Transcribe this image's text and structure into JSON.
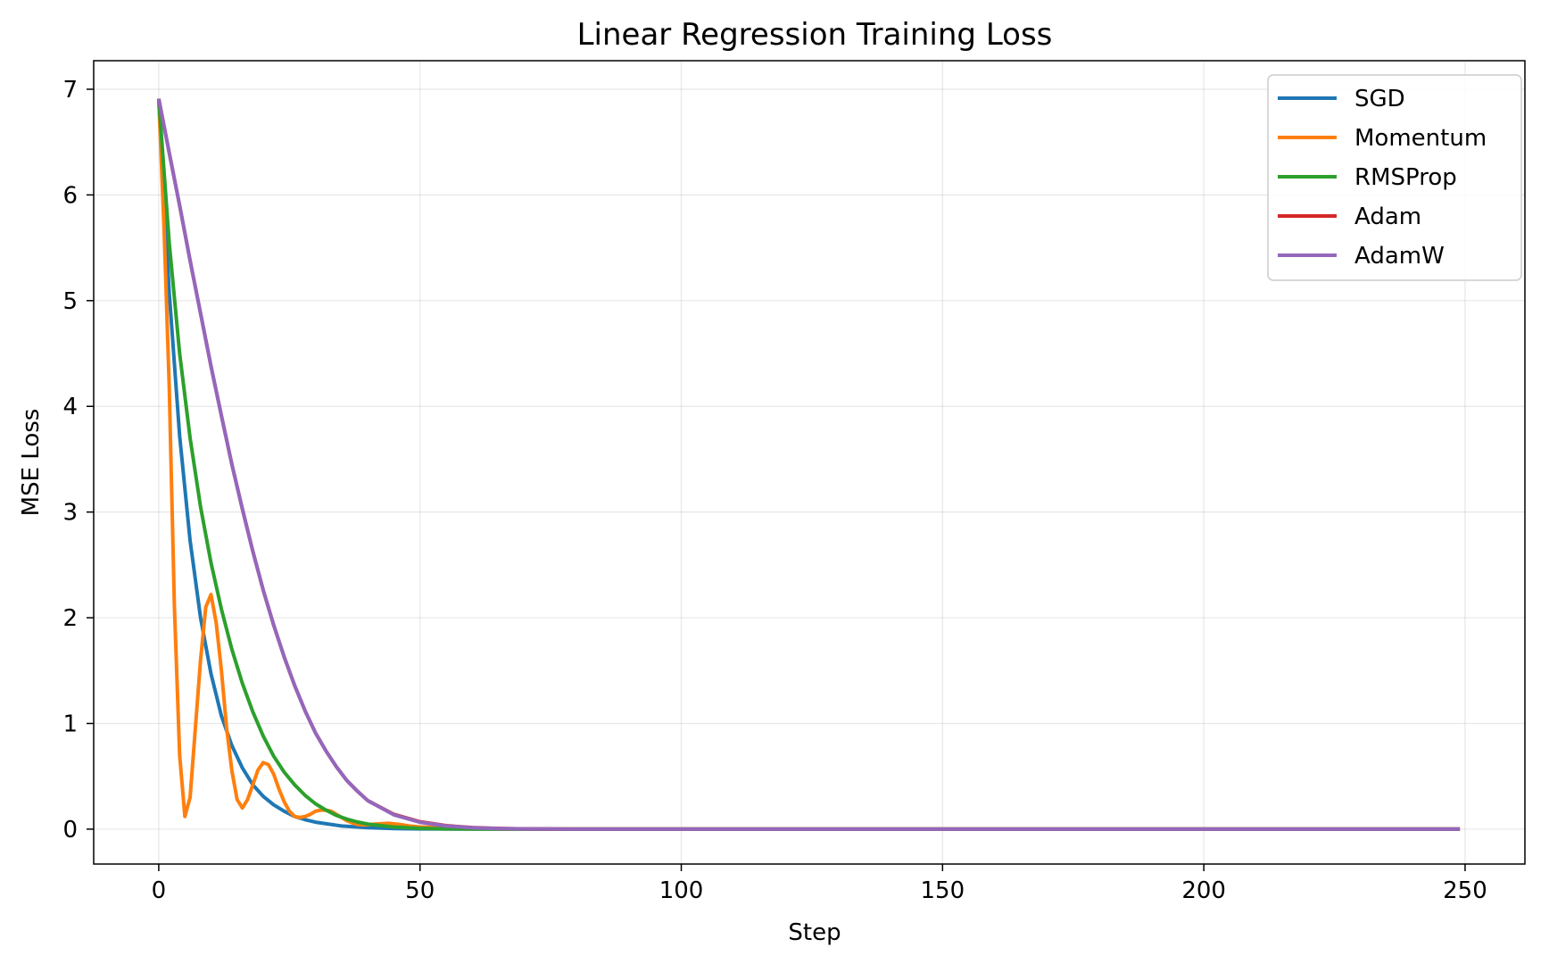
{
  "chart_data": {
    "type": "line",
    "title": "Linear Regression Training Loss",
    "xlabel": "Step",
    "ylabel": "MSE Loss",
    "xlim": [
      -12.45,
      261.45
    ],
    "ylim": [
      -0.33,
      7.27
    ],
    "xticks": [
      0,
      50,
      100,
      150,
      200,
      250
    ],
    "yticks": [
      0,
      1,
      2,
      3,
      4,
      5,
      6,
      7
    ],
    "grid": true,
    "legend_position": "upper right",
    "series": [
      {
        "name": "SGD",
        "color": "#1f77b4",
        "points": [
          [
            0,
            6.91
          ],
          [
            2,
            5.08
          ],
          [
            4,
            3.72
          ],
          [
            6,
            2.73
          ],
          [
            8,
            2.0
          ],
          [
            10,
            1.47
          ],
          [
            12,
            1.07
          ],
          [
            14,
            0.79
          ],
          [
            16,
            0.58
          ],
          [
            18,
            0.42
          ],
          [
            20,
            0.31
          ],
          [
            22,
            0.23
          ],
          [
            24,
            0.17
          ],
          [
            26,
            0.12
          ],
          [
            28,
            0.09
          ],
          [
            30,
            0.066
          ],
          [
            35,
            0.03
          ],
          [
            40,
            0.014
          ],
          [
            45,
            0.006
          ],
          [
            50,
            0.003
          ],
          [
            60,
            0.001
          ],
          [
            70,
            0.0
          ],
          [
            100,
            0.0
          ],
          [
            150,
            0.0
          ],
          [
            200,
            0.0
          ],
          [
            249,
            0.0
          ]
        ]
      },
      {
        "name": "Momentum",
        "color": "#ff7f0e",
        "points": [
          [
            0,
            6.91
          ],
          [
            1,
            5.7
          ],
          [
            2,
            4.2
          ],
          [
            3,
            2.1
          ],
          [
            4,
            0.7
          ],
          [
            5,
            0.12
          ],
          [
            6,
            0.3
          ],
          [
            7,
            0.95
          ],
          [
            8,
            1.6
          ],
          [
            9,
            2.1
          ],
          [
            10,
            2.22
          ],
          [
            11,
            1.95
          ],
          [
            12,
            1.5
          ],
          [
            13,
            0.95
          ],
          [
            14,
            0.55
          ],
          [
            15,
            0.28
          ],
          [
            16,
            0.2
          ],
          [
            17,
            0.28
          ],
          [
            18,
            0.42
          ],
          [
            19,
            0.56
          ],
          [
            20,
            0.63
          ],
          [
            21,
            0.61
          ],
          [
            22,
            0.52
          ],
          [
            23,
            0.38
          ],
          [
            24,
            0.26
          ],
          [
            25,
            0.17
          ],
          [
            26,
            0.12
          ],
          [
            27,
            0.11
          ],
          [
            28,
            0.12
          ],
          [
            29,
            0.14
          ],
          [
            30,
            0.17
          ],
          [
            31,
            0.18
          ],
          [
            32,
            0.18
          ],
          [
            33,
            0.17
          ],
          [
            34,
            0.14
          ],
          [
            35,
            0.11
          ],
          [
            36,
            0.08
          ],
          [
            37,
            0.06
          ],
          [
            38,
            0.045
          ],
          [
            39,
            0.04
          ],
          [
            40,
            0.042
          ],
          [
            42,
            0.05
          ],
          [
            44,
            0.055
          ],
          [
            46,
            0.045
          ],
          [
            48,
            0.03
          ],
          [
            50,
            0.02
          ],
          [
            55,
            0.015
          ],
          [
            60,
            0.005
          ],
          [
            70,
            0.0
          ],
          [
            100,
            0.0
          ],
          [
            150,
            0.0
          ],
          [
            200,
            0.0
          ],
          [
            249,
            0.0
          ]
        ]
      },
      {
        "name": "RMSProp",
        "color": "#2ca02c",
        "points": [
          [
            0,
            6.91
          ],
          [
            2,
            5.55
          ],
          [
            4,
            4.5
          ],
          [
            6,
            3.7
          ],
          [
            8,
            3.05
          ],
          [
            10,
            2.52
          ],
          [
            12,
            2.08
          ],
          [
            14,
            1.7
          ],
          [
            16,
            1.38
          ],
          [
            18,
            1.11
          ],
          [
            20,
            0.88
          ],
          [
            22,
            0.69
          ],
          [
            24,
            0.54
          ],
          [
            26,
            0.42
          ],
          [
            28,
            0.32
          ],
          [
            30,
            0.24
          ],
          [
            32,
            0.18
          ],
          [
            34,
            0.13
          ],
          [
            36,
            0.095
          ],
          [
            38,
            0.068
          ],
          [
            40,
            0.048
          ],
          [
            45,
            0.02
          ],
          [
            50,
            0.008
          ],
          [
            55,
            0.003
          ],
          [
            60,
            0.001
          ],
          [
            70,
            0.0
          ],
          [
            100,
            0.0
          ],
          [
            150,
            0.0
          ],
          [
            200,
            0.0
          ],
          [
            249,
            0.0
          ]
        ]
      },
      {
        "name": "Adam",
        "color": "#d62728",
        "points": [
          [
            0,
            6.91
          ],
          [
            2,
            6.4
          ],
          [
            4,
            5.9
          ],
          [
            6,
            5.38
          ],
          [
            8,
            4.88
          ],
          [
            10,
            4.38
          ],
          [
            12,
            3.91
          ],
          [
            14,
            3.45
          ],
          [
            16,
            3.03
          ],
          [
            18,
            2.63
          ],
          [
            20,
            2.26
          ],
          [
            22,
            1.93
          ],
          [
            24,
            1.63
          ],
          [
            26,
            1.36
          ],
          [
            28,
            1.12
          ],
          [
            30,
            0.91
          ],
          [
            32,
            0.74
          ],
          [
            34,
            0.59
          ],
          [
            36,
            0.46
          ],
          [
            38,
            0.36
          ],
          [
            40,
            0.27
          ],
          [
            45,
            0.14
          ],
          [
            50,
            0.07
          ],
          [
            55,
            0.033
          ],
          [
            60,
            0.015
          ],
          [
            65,
            0.007
          ],
          [
            70,
            0.003
          ],
          [
            80,
            0.0
          ],
          [
            100,
            0.0
          ],
          [
            150,
            0.0
          ],
          [
            200,
            0.0
          ],
          [
            249,
            0.0
          ]
        ]
      },
      {
        "name": "AdamW",
        "color": "#9467bd",
        "points": [
          [
            0,
            6.91
          ],
          [
            2,
            6.4
          ],
          [
            4,
            5.9
          ],
          [
            6,
            5.38
          ],
          [
            8,
            4.88
          ],
          [
            10,
            4.38
          ],
          [
            12,
            3.91
          ],
          [
            14,
            3.45
          ],
          [
            16,
            3.03
          ],
          [
            18,
            2.63
          ],
          [
            20,
            2.26
          ],
          [
            22,
            1.93
          ],
          [
            24,
            1.63
          ],
          [
            26,
            1.36
          ],
          [
            28,
            1.12
          ],
          [
            30,
            0.91
          ],
          [
            32,
            0.74
          ],
          [
            34,
            0.59
          ],
          [
            36,
            0.46
          ],
          [
            38,
            0.36
          ],
          [
            40,
            0.27
          ],
          [
            45,
            0.135
          ],
          [
            50,
            0.065
          ],
          [
            55,
            0.03
          ],
          [
            60,
            0.013
          ],
          [
            65,
            0.006
          ],
          [
            70,
            0.003
          ],
          [
            80,
            0.0
          ],
          [
            100,
            0.0
          ],
          [
            150,
            0.0
          ],
          [
            200,
            0.0
          ],
          [
            249,
            0.0
          ]
        ]
      }
    ]
  }
}
